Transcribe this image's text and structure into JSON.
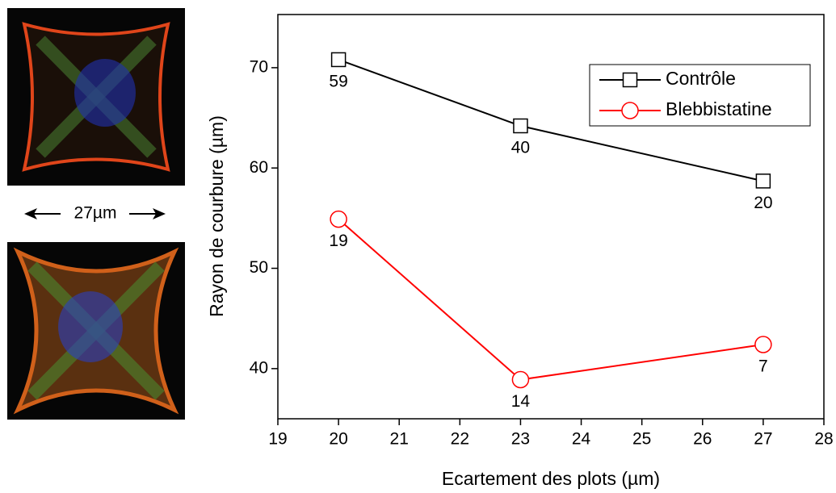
{
  "image_panel": {
    "scale_label": "27µm"
  },
  "chart_data": {
    "type": "line",
    "x_label": "Ecartement des plots (µm)",
    "y_label": "Rayon de courbure (µm)",
    "xlim": [
      19,
      28
    ],
    "xticks": [
      19,
      20,
      21,
      22,
      23,
      24,
      25,
      26,
      27,
      28
    ],
    "ylim": [
      35,
      75.3
    ],
    "yticks": [
      40,
      50,
      60,
      70
    ],
    "legend": "upper right",
    "series": [
      {
        "name": "Contrôle",
        "color": "#000000",
        "marker": "square",
        "x": [
          20,
          23,
          27
        ],
        "values": [
          70.8,
          64.2,
          58.7
        ],
        "value_labels": [
          59,
          40,
          20
        ]
      },
      {
        "name": "Blebbistatine",
        "color": "#ff0000",
        "marker": "circle",
        "x": [
          20,
          23,
          27
        ],
        "values": [
          54.9,
          38.9,
          42.4
        ],
        "value_labels": [
          19,
          14,
          7
        ]
      }
    ]
  }
}
